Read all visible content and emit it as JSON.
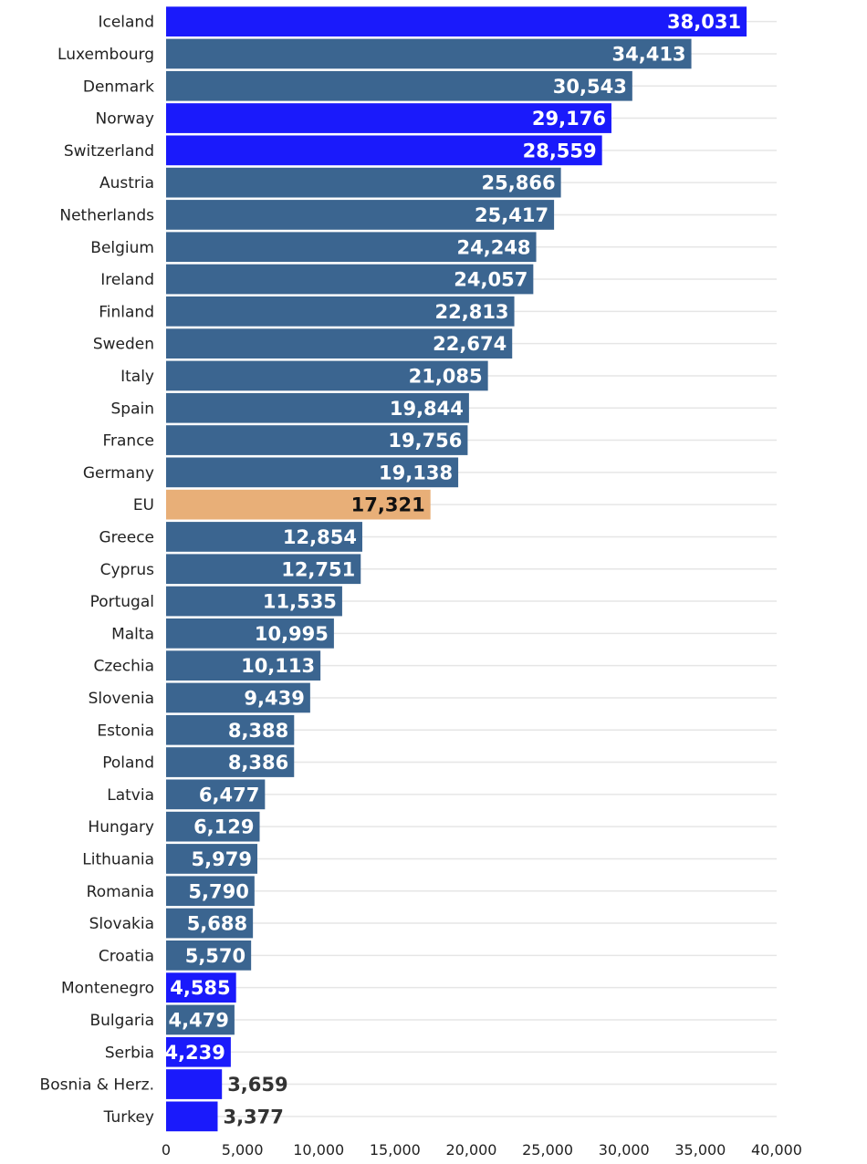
{
  "chart_data": {
    "type": "bar",
    "orientation": "horizontal",
    "title": "",
    "xlabel": "",
    "ylabel": "",
    "xlim": [
      0,
      40000
    ],
    "xticks": [
      0,
      5000,
      10000,
      15000,
      20000,
      25000,
      30000,
      35000,
      40000
    ],
    "xtick_labels": [
      "0",
      "5,000",
      "10,000",
      "15,000",
      "20,000",
      "25,000",
      "30,000",
      "35,000",
      "40,000"
    ],
    "grid": true,
    "colors": {
      "eu_member": "#3b6590",
      "non_eu": "#1a1afb",
      "eu_average": "#e8af78"
    },
    "categories": [
      "Iceland",
      "Luxembourg",
      "Denmark",
      "Norway",
      "Switzerland",
      "Austria",
      "Netherlands",
      "Belgium",
      "Ireland",
      "Finland",
      "Sweden",
      "Italy",
      "Spain",
      "France",
      "Germany",
      "EU",
      "Greece",
      "Cyprus",
      "Portugal",
      "Malta",
      "Czechia",
      "Slovenia",
      "Estonia",
      "Poland",
      "Latvia",
      "Hungary",
      "Lithuania",
      "Romania",
      "Slovakia",
      "Croatia",
      "Montenegro",
      "Bulgaria",
      "Serbia",
      "Bosnia & Herz.",
      "Turkey"
    ],
    "values": [
      38031,
      34413,
      30543,
      29176,
      28559,
      25866,
      25417,
      24248,
      24057,
      22813,
      22674,
      21085,
      19844,
      19756,
      19138,
      17321,
      12854,
      12751,
      11535,
      10995,
      10113,
      9439,
      8388,
      8386,
      6477,
      6129,
      5979,
      5790,
      5688,
      5570,
      4585,
      4479,
      4239,
      3659,
      3377
    ],
    "value_labels": [
      "38,031",
      "34,413",
      "30,543",
      "29,176",
      "28,559",
      "25,866",
      "25,417",
      "24,248",
      "24,057",
      "22,813",
      "22,674",
      "21,085",
      "19,844",
      "19,756",
      "19,138",
      "17,321",
      "12,854",
      "12,751",
      "11,535",
      "10,995",
      "10,113",
      "9,439",
      "8,388",
      "8,386",
      "6,477",
      "6,129",
      "5,979",
      "5,790",
      "5,688",
      "5,570",
      "4,585",
      "4,479",
      "4,239",
      "3,659",
      "3,377"
    ],
    "groups": [
      "non_eu",
      "eu_member",
      "eu_member",
      "non_eu",
      "non_eu",
      "eu_member",
      "eu_member",
      "eu_member",
      "eu_member",
      "eu_member",
      "eu_member",
      "eu_member",
      "eu_member",
      "eu_member",
      "eu_member",
      "eu_average",
      "eu_member",
      "eu_member",
      "eu_member",
      "eu_member",
      "eu_member",
      "eu_member",
      "eu_member",
      "eu_member",
      "eu_member",
      "eu_member",
      "eu_member",
      "eu_member",
      "eu_member",
      "eu_member",
      "non_eu",
      "eu_member",
      "non_eu",
      "non_eu",
      "non_eu"
    ]
  }
}
